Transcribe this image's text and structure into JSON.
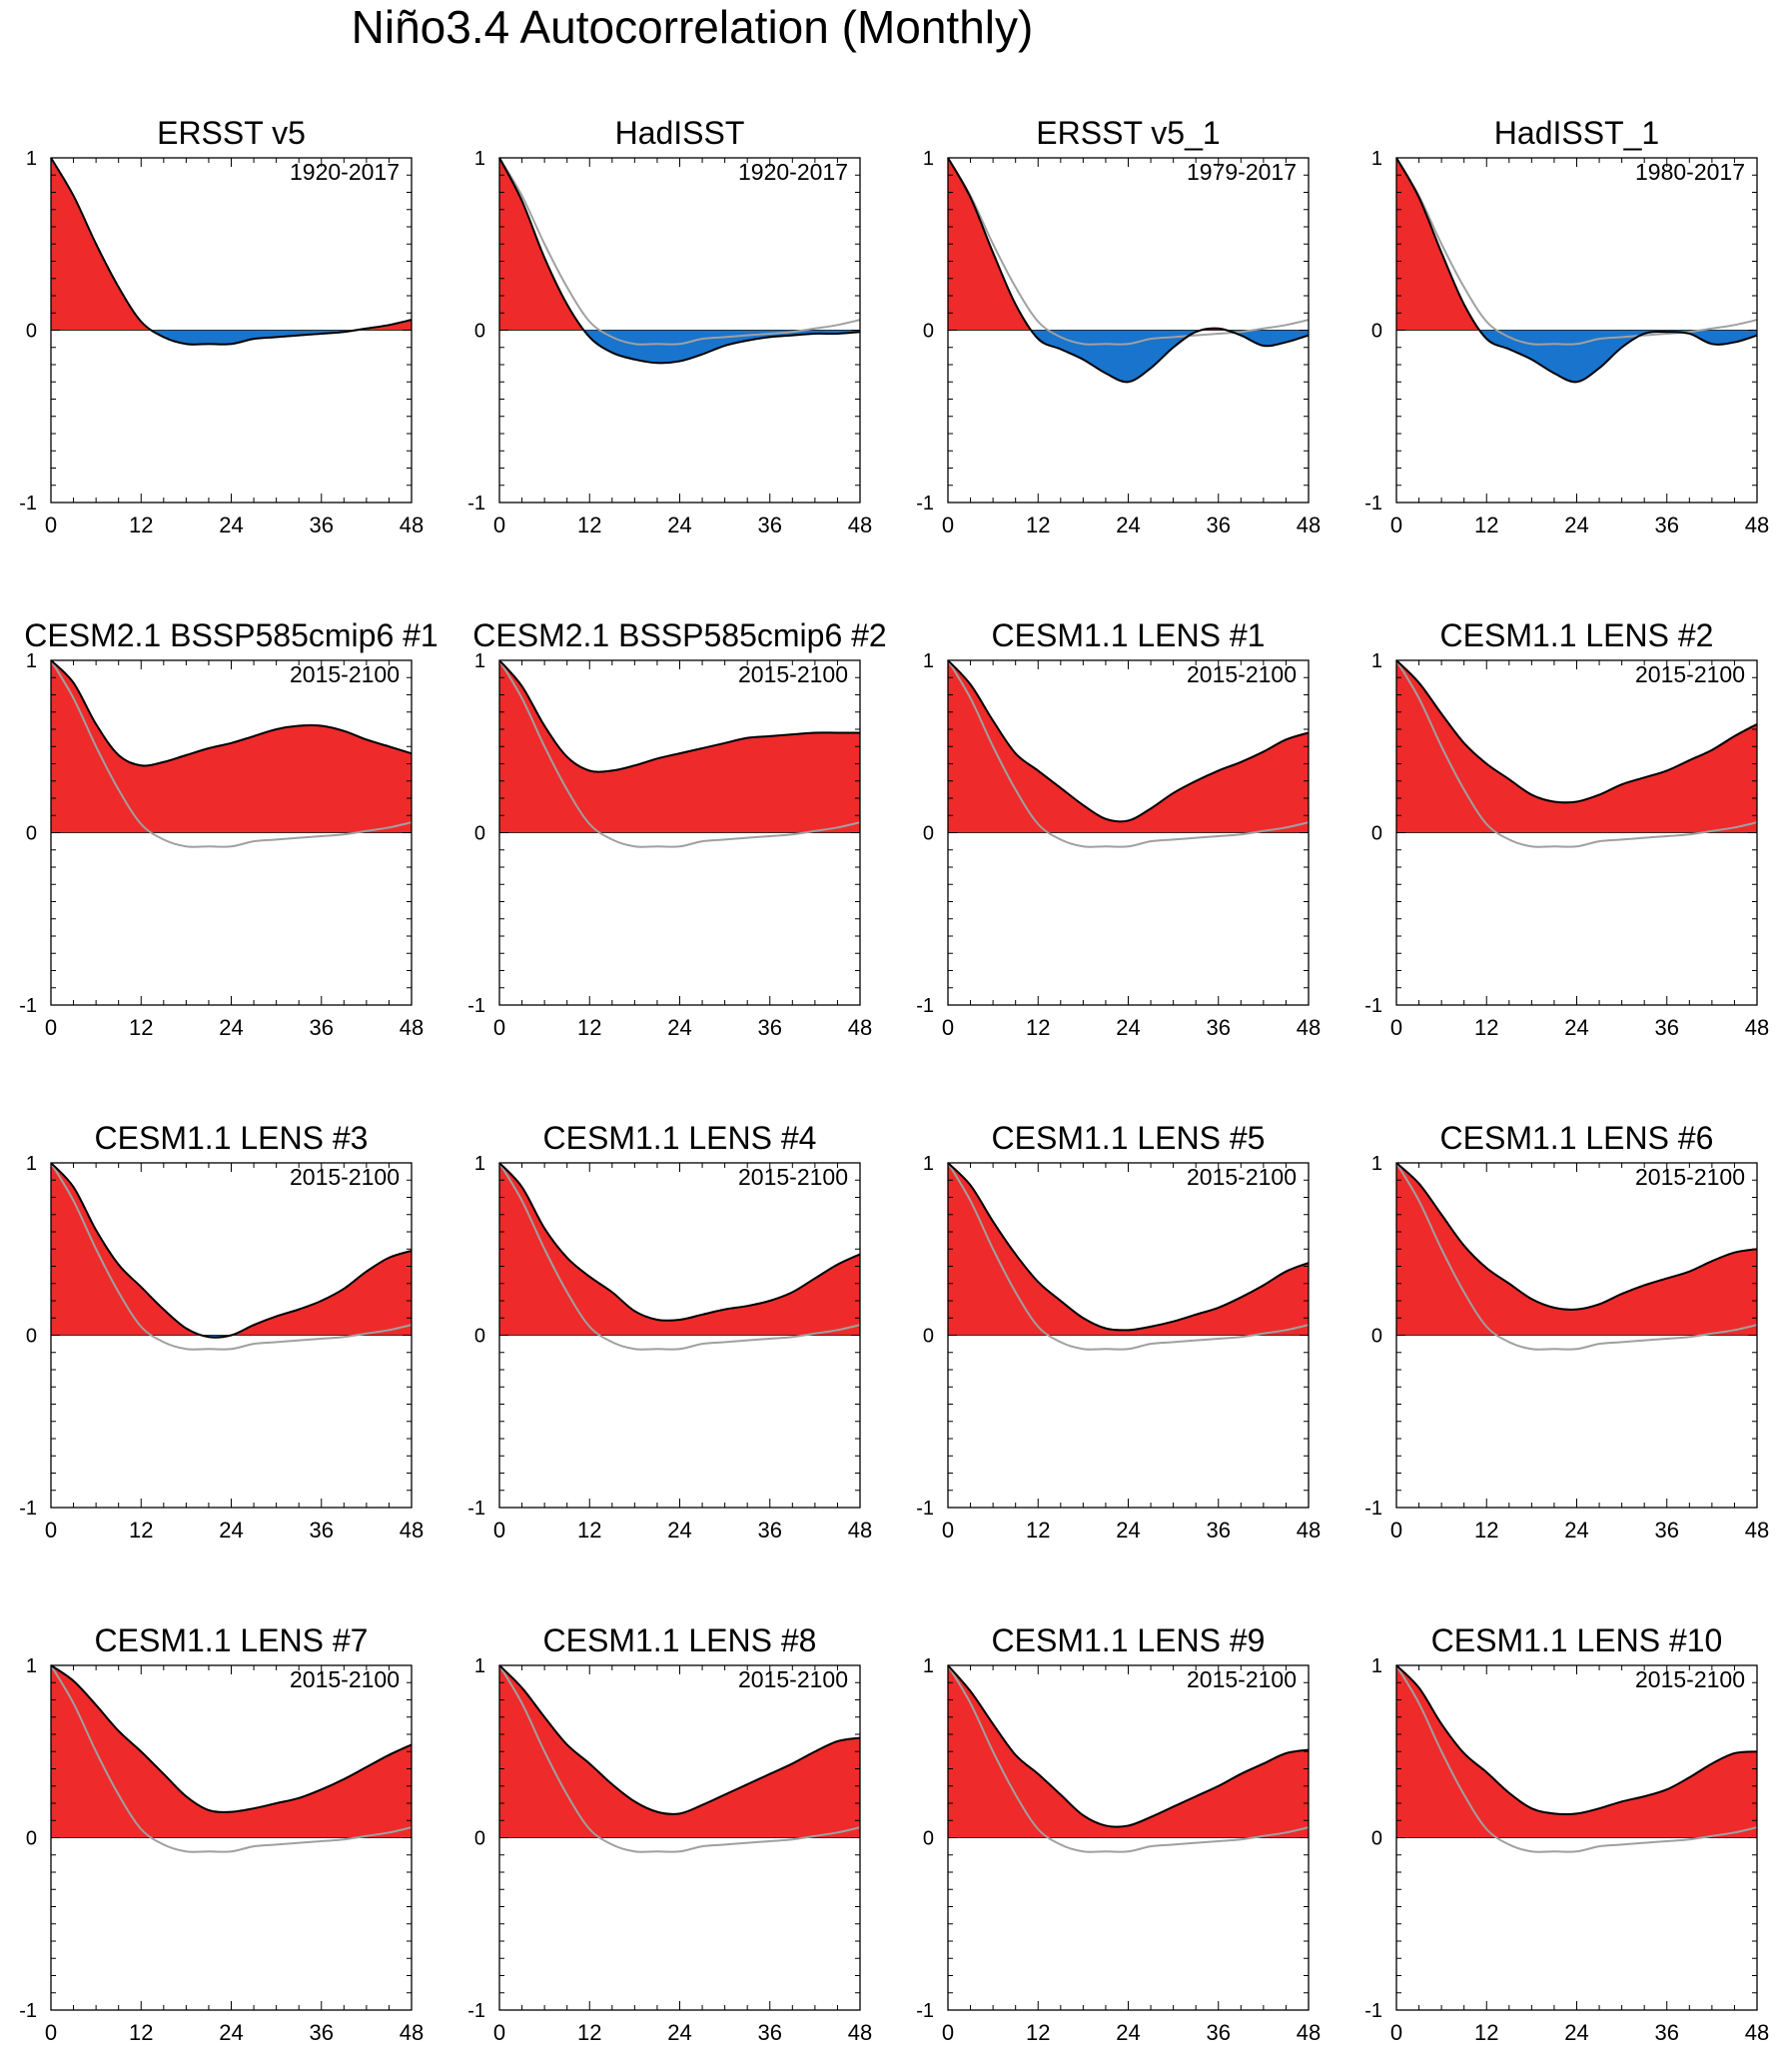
{
  "figure_title": "Niño3.4 Autocorrelation (Monthly)",
  "colors": {
    "positive_fill": "#ee2a2a",
    "negative_fill": "#1874cd",
    "series_line": "#000000",
    "reference_line": "#a0a0a0",
    "axis": "#000000"
  },
  "chart_data": {
    "type": "area",
    "xlabel": "",
    "ylabel": "",
    "xlim": [
      0,
      48
    ],
    "ylim": [
      -1,
      1
    ],
    "xticks": [
      0,
      12,
      24,
      36,
      48
    ],
    "xtick_labels": [
      "0",
      "12",
      "24",
      "36",
      "48"
    ],
    "yticks": [
      1,
      0,
      -1
    ],
    "ytick_labels": [
      "1",
      "0",
      "-1"
    ],
    "lags": [
      0,
      3,
      6,
      9,
      12,
      15,
      18,
      21,
      24,
      27,
      30,
      33,
      36,
      39,
      42,
      45,
      48
    ],
    "reference": {
      "name": "ERSST v5 (1920-2017)",
      "values": [
        1.0,
        0.78,
        0.5,
        0.25,
        0.05,
        -0.04,
        -0.08,
        -0.08,
        -0.08,
        -0.05,
        -0.04,
        -0.03,
        -0.02,
        -0.01,
        0.01,
        0.03,
        0.06
      ]
    },
    "panels": [
      {
        "title": "ERSST v5",
        "period": "1920-2017",
        "values": [
          1.0,
          0.78,
          0.5,
          0.25,
          0.05,
          -0.04,
          -0.08,
          -0.08,
          -0.08,
          -0.05,
          -0.04,
          -0.03,
          -0.02,
          -0.01,
          0.01,
          0.03,
          0.06
        ]
      },
      {
        "title": "HadISST",
        "period": "1920-2017",
        "values": [
          1.0,
          0.75,
          0.42,
          0.15,
          -0.04,
          -0.13,
          -0.17,
          -0.19,
          -0.18,
          -0.14,
          -0.09,
          -0.06,
          -0.04,
          -0.03,
          -0.02,
          -0.02,
          -0.01
        ]
      },
      {
        "title": "ERSST v5_1",
        "period": "1979-2017",
        "values": [
          1.0,
          0.77,
          0.45,
          0.15,
          -0.05,
          -0.11,
          -0.17,
          -0.25,
          -0.3,
          -0.22,
          -0.1,
          -0.01,
          0.01,
          -0.03,
          -0.09,
          -0.07,
          -0.03
        ]
      },
      {
        "title": "HadISST_1",
        "period": "1980-2017",
        "values": [
          1.0,
          0.77,
          0.45,
          0.15,
          -0.05,
          -0.11,
          -0.17,
          -0.25,
          -0.3,
          -0.22,
          -0.1,
          -0.02,
          -0.01,
          -0.02,
          -0.08,
          -0.07,
          -0.03
        ]
      },
      {
        "title": "CESM2.1 BSSP585cmip6 #1",
        "period": "2015-2100",
        "values": [
          1.0,
          0.87,
          0.63,
          0.45,
          0.39,
          0.41,
          0.45,
          0.49,
          0.52,
          0.56,
          0.6,
          0.62,
          0.62,
          0.59,
          0.54,
          0.5,
          0.46
        ]
      },
      {
        "title": "CESM2.1 BSSP585cmip6 #2",
        "period": "2015-2100",
        "values": [
          1.0,
          0.85,
          0.62,
          0.44,
          0.36,
          0.36,
          0.39,
          0.43,
          0.46,
          0.49,
          0.52,
          0.55,
          0.56,
          0.57,
          0.58,
          0.58,
          0.58
        ]
      },
      {
        "title": "CESM1.1 LENS #1",
        "period": "2015-2100",
        "values": [
          1.0,
          0.86,
          0.65,
          0.46,
          0.36,
          0.26,
          0.16,
          0.08,
          0.07,
          0.14,
          0.23,
          0.3,
          0.36,
          0.41,
          0.47,
          0.54,
          0.58
        ]
      },
      {
        "title": "CESM1.1 LENS #2",
        "period": "2015-2100",
        "values": [
          1.0,
          0.87,
          0.69,
          0.52,
          0.4,
          0.31,
          0.22,
          0.18,
          0.18,
          0.22,
          0.28,
          0.32,
          0.36,
          0.42,
          0.48,
          0.56,
          0.63
        ]
      },
      {
        "title": "CESM1.1 LENS #3",
        "period": "2015-2100",
        "values": [
          1.0,
          0.86,
          0.61,
          0.41,
          0.28,
          0.15,
          0.04,
          -0.01,
          0.0,
          0.06,
          0.11,
          0.15,
          0.2,
          0.27,
          0.37,
          0.45,
          0.49
        ]
      },
      {
        "title": "CESM1.1 LENS #4",
        "period": "2015-2100",
        "values": [
          1.0,
          0.86,
          0.62,
          0.45,
          0.34,
          0.25,
          0.14,
          0.09,
          0.09,
          0.12,
          0.15,
          0.17,
          0.2,
          0.25,
          0.33,
          0.41,
          0.47
        ]
      },
      {
        "title": "CESM1.1 LENS #5",
        "period": "2015-2100",
        "values": [
          1.0,
          0.87,
          0.66,
          0.47,
          0.31,
          0.2,
          0.1,
          0.04,
          0.03,
          0.05,
          0.08,
          0.12,
          0.16,
          0.22,
          0.29,
          0.37,
          0.42
        ]
      },
      {
        "title": "CESM1.1 LENS #6",
        "period": "2015-2100",
        "values": [
          1.0,
          0.88,
          0.7,
          0.52,
          0.39,
          0.3,
          0.21,
          0.16,
          0.15,
          0.18,
          0.24,
          0.29,
          0.33,
          0.37,
          0.43,
          0.48,
          0.5
        ]
      },
      {
        "title": "CESM1.1 LENS #7",
        "period": "2015-2100",
        "values": [
          1.0,
          0.91,
          0.77,
          0.62,
          0.5,
          0.37,
          0.24,
          0.16,
          0.15,
          0.17,
          0.2,
          0.23,
          0.28,
          0.34,
          0.41,
          0.48,
          0.54
        ]
      },
      {
        "title": "CESM1.1 LENS #8",
        "period": "2015-2100",
        "values": [
          1.0,
          0.87,
          0.7,
          0.54,
          0.43,
          0.31,
          0.21,
          0.15,
          0.14,
          0.19,
          0.25,
          0.31,
          0.37,
          0.43,
          0.5,
          0.56,
          0.58
        ]
      },
      {
        "title": "CESM1.1 LENS #9",
        "period": "2015-2100",
        "values": [
          1.0,
          0.85,
          0.66,
          0.48,
          0.37,
          0.25,
          0.13,
          0.07,
          0.07,
          0.12,
          0.18,
          0.24,
          0.3,
          0.37,
          0.43,
          0.49,
          0.51
        ]
      },
      {
        "title": "CESM1.1 LENS #10",
        "period": "2015-2100",
        "values": [
          1.0,
          0.87,
          0.66,
          0.49,
          0.38,
          0.26,
          0.17,
          0.14,
          0.14,
          0.17,
          0.21,
          0.24,
          0.28,
          0.35,
          0.43,
          0.49,
          0.5
        ]
      }
    ]
  }
}
